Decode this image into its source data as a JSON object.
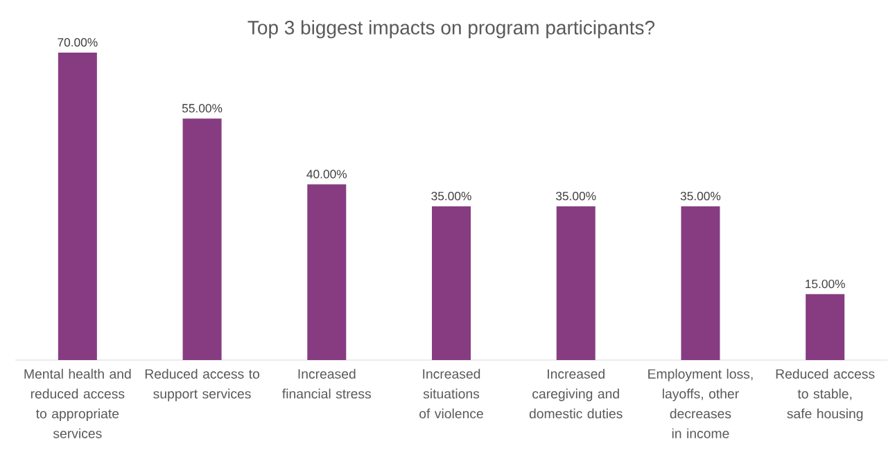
{
  "chart_data": {
    "type": "bar",
    "title": "Top 3 biggest impacts on program participants?",
    "categories": [
      "Mental health and reduced access to appropriate services",
      "Reduced access to support services",
      "Increased financial stress",
      "Increased situations of violence",
      "Increased caregiving and domestic duties",
      "Employment loss, layoffs, other decreases in income",
      "Reduced access to stable, safe housing"
    ],
    "values": [
      70,
      55,
      40,
      35,
      35,
      35,
      15
    ],
    "value_labels": [
      "70.00%",
      "55.00%",
      "40.00%",
      "35.00%",
      "35.00%",
      "35.00%",
      "15.00%"
    ],
    "color": "#873c82"
  }
}
